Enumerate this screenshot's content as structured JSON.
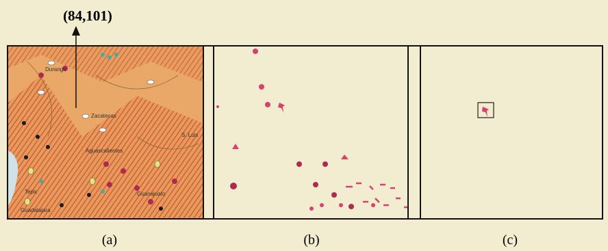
{
  "annotation": "(84,101)",
  "panels": [
    {
      "label": "(a)"
    },
    {
      "label": "(b)"
    },
    {
      "label": "(c)"
    }
  ],
  "map_labels": [
    "Durango",
    "Zacatecas",
    "Aguascalientes",
    "Tepic",
    "Guadalajara",
    "Guanajuato",
    "S. Luis"
  ]
}
